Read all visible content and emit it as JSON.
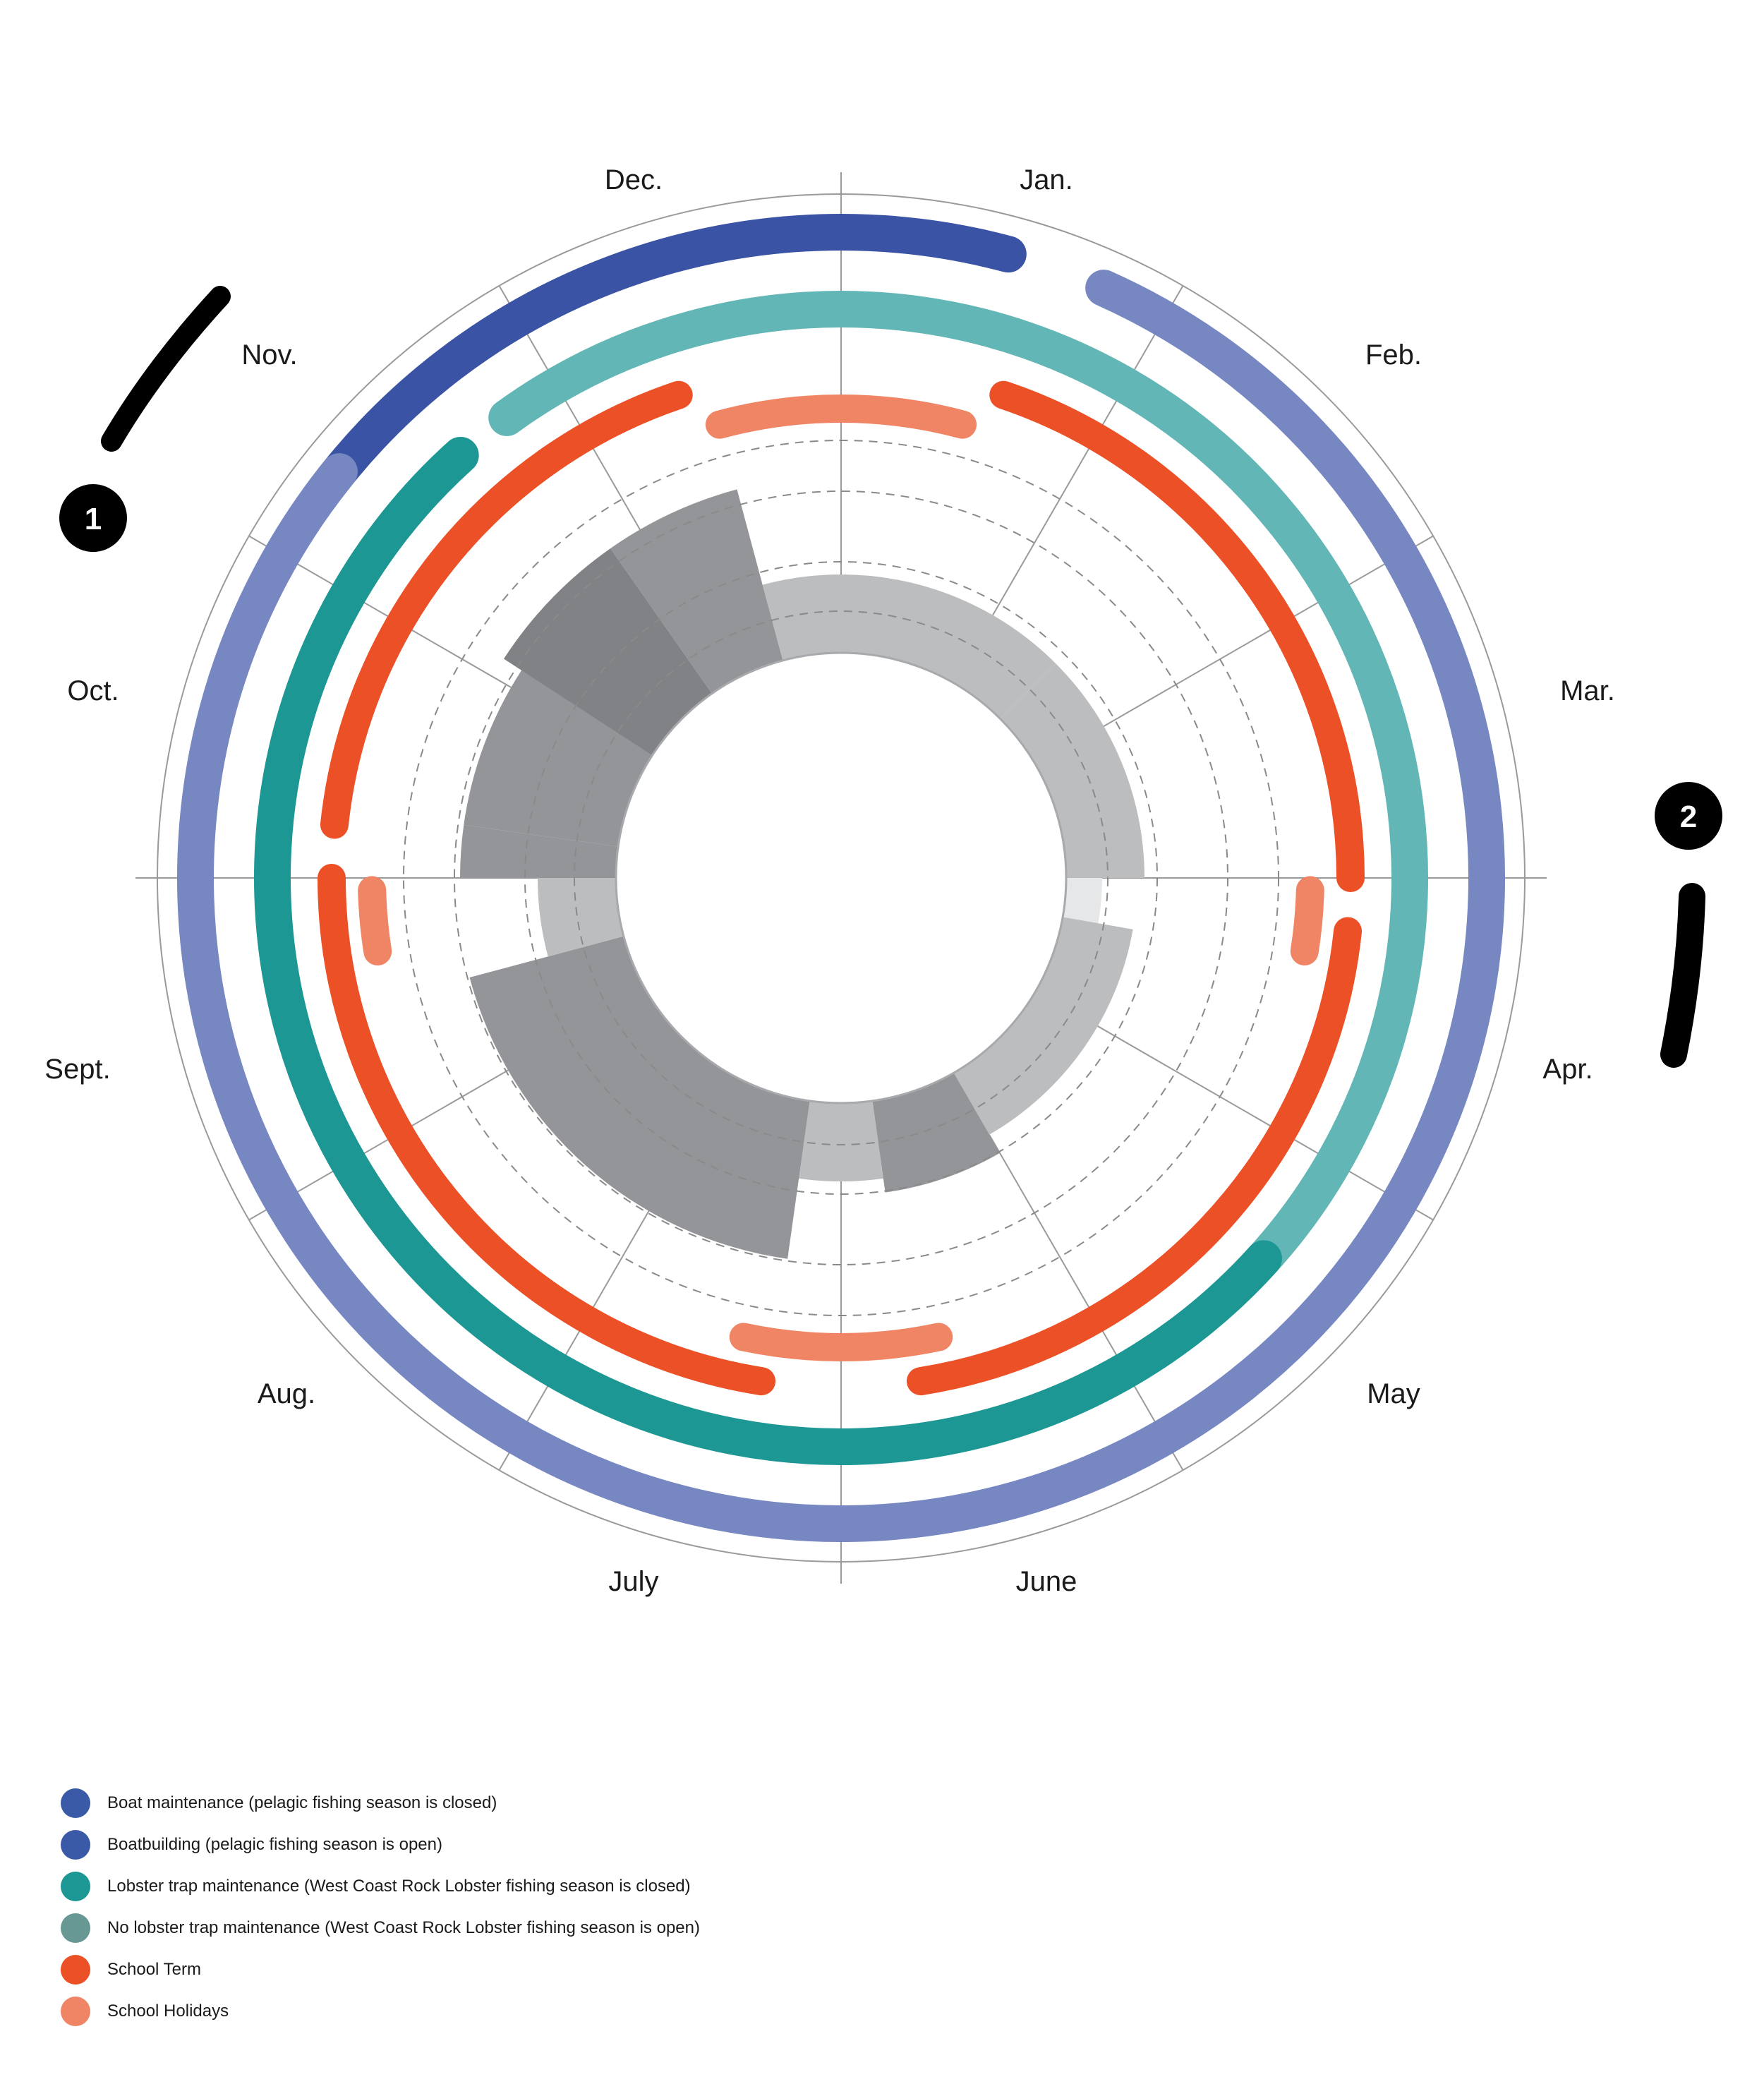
{
  "chart_data": {
    "type": "radial-calendar",
    "title": "",
    "center": [
      1192,
      1244
    ],
    "months": [
      "Jan.",
      "Feb.",
      "Mar.",
      "Apr.",
      "May",
      "June",
      "July",
      "Aug.",
      "Sept.",
      "Oct.",
      "Nov.",
      "Dec."
    ],
    "month_angle_deg_per_month": 30,
    "orientation": "clockwise from top, Jan. starts at 12 o'clock",
    "rings": [
      {
        "name": "Boatbuilding (pelagic fishing season is open)",
        "color": "#3a53a4",
        "radius": 915,
        "width": 52,
        "segments": [
          {
            "start_month": 10.2,
            "end_month": 12.5
          }
        ]
      },
      {
        "name": "Boat maintenance (pelagic fishing season is closed)",
        "color": "#7787c1",
        "radius": 915,
        "width": 52,
        "segments": [
          {
            "start_month": 0.8,
            "end_month": 10.3
          }
        ]
      },
      {
        "name": "No lobster trap maintenance (West Coast Rock Lobster fishing season is open)",
        "color": "#62b7b6",
        "radius": 806,
        "width": 52,
        "segments": [
          {
            "start_month": 10.8,
            "end_month": 16.6
          }
        ]
      },
      {
        "name": "Lobster trap maintenance (West Coast Rock Lobster fishing season is closed)",
        "color": "#1c9794",
        "radius": 806,
        "width": 52,
        "segments": [
          {
            "start_month": 4.4,
            "end_month": 10.6
          }
        ]
      },
      {
        "name": "School Term",
        "color": "#ec5026",
        "radius": 722,
        "width": 40,
        "segments": [
          {
            "start_month": 0.62,
            "end_month": 3.0
          },
          {
            "start_month": 3.2,
            "end_month": 5.7
          },
          {
            "start_month": 6.3,
            "end_month": 9.0
          },
          {
            "start_month": 9.2,
            "end_month": 11.38
          }
        ]
      },
      {
        "name": "School Holidays",
        "color": "#f08565",
        "radius": 665,
        "width": 40,
        "segments": [
          {
            "start_month": 11.5,
            "end_month": 12.5
          },
          {
            "start_month": 3.05,
            "end_month": 3.3
          },
          {
            "start_month": 5.6,
            "end_month": 6.4
          },
          {
            "start_month": 8.7,
            "end_month": 8.95
          }
        ]
      }
    ],
    "inner_bars": {
      "inner_radius": 319,
      "gridline_radii": [
        378,
        448,
        548,
        620
      ],
      "sectors": [
        {
          "from_deg": 0,
          "to_deg": 45,
          "outer": 430,
          "color": "#bcbdbf"
        },
        {
          "from_deg": 45,
          "to_deg": 90,
          "outer": 430,
          "color": "#bcbdbf"
        },
        {
          "from_deg": 90,
          "to_deg": 100,
          "outer": 370,
          "color": "#e6e7e8"
        },
        {
          "from_deg": 100,
          "to_deg": 150,
          "outer": 420,
          "color": "#bcbdbf"
        },
        {
          "from_deg": 150,
          "to_deg": 172,
          "outer": 450,
          "color": "#939598"
        },
        {
          "from_deg": 172,
          "to_deg": 188,
          "outer": 430,
          "color": "#bcbdbf"
        },
        {
          "from_deg": 188,
          "to_deg": 255,
          "outer": 545,
          "color": "#939598"
        },
        {
          "from_deg": 255,
          "to_deg": 270,
          "outer": 430,
          "color": "#bcbdbf"
        },
        {
          "from_deg": 270,
          "to_deg": 278,
          "outer": 540,
          "color": "#939598"
        },
        {
          "from_deg": 278,
          "to_deg": 310,
          "outer": 540,
          "color": "#939598"
        },
        {
          "from_deg": 303,
          "to_deg": 325,
          "outer": 570,
          "color": "#808285"
        },
        {
          "from_deg": 325,
          "to_deg": 345,
          "outer": 570,
          "color": "#939598"
        },
        {
          "from_deg": 345,
          "to_deg": 360,
          "outer": 430,
          "color": "#bcbdbf"
        }
      ]
    },
    "annotations": [
      {
        "label": "1",
        "position": "upper-left near Nov.",
        "marker": "curved black stroke"
      },
      {
        "label": "2",
        "position": "right near Mar./Apr.",
        "marker": "curved black stroke"
      }
    ]
  },
  "month_labels": [
    "Jan.",
    "Feb.",
    "Mar.",
    "Apr.",
    "May",
    "June",
    "July",
    "Aug.",
    "Sept.",
    "Oct.",
    "Nov.",
    "Dec."
  ],
  "badges": {
    "one": "1",
    "two": "2"
  },
  "legend": [
    {
      "label": "Boat maintenance (pelagic fishing season is closed)",
      "color": "#3a5aa8"
    },
    {
      "label": "Boatbuilding (pelagic fishing season is open)",
      "color": "#3a5aa8"
    },
    {
      "label": "Lobster trap maintenance (West Coast Rock Lobster fishing season is closed)",
      "color": "#1c9794"
    },
    {
      "label": "No lobster trap maintenance (West Coast Rock Lobster fishing season is open)",
      "color": "#679894"
    },
    {
      "label": "School Term",
      "color": "#ec5026"
    },
    {
      "label": "School Holidays",
      "color": "#f08565"
    }
  ]
}
